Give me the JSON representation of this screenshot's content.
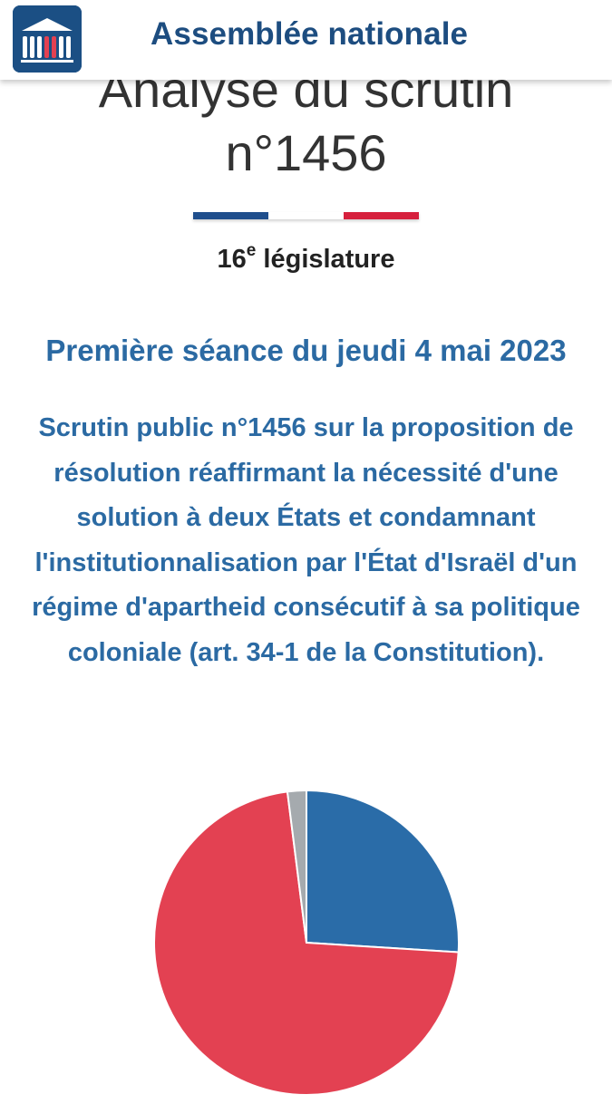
{
  "header": {
    "site_title": "Assemblée nationale"
  },
  "page": {
    "title_line1": "Analyse du scrutin",
    "title_line2": "n°1456",
    "legislature_number": "16",
    "legislature_suffix": "e",
    "legislature_label": " législature",
    "seance": "Première séance du jeudi 4 mai 2023",
    "description": "Scrutin public n°1456 sur la proposition de résolution réaffirmant la nécessité d'une solution à deux États et condamnant l'institutionnalisation par l'État d'Israël d'un régime d'apartheid consécutif à sa politique coloniale (art. 34-1 de la Constitution)."
  },
  "colors": {
    "brand_blue": "#1d4d80",
    "text_blue": "#2b6aa3",
    "flag_blue": "#1f4e8c",
    "flag_red": "#d6203d",
    "pie_for": "#2a6ca8",
    "pie_against": "#e34152",
    "pie_abstention": "#a5aaae"
  },
  "chart_data": {
    "type": "pie",
    "slices": [
      {
        "value": 26,
        "color": "#2a6ca8"
      },
      {
        "value": 72,
        "color": "#e34152"
      },
      {
        "value": 2,
        "color": "#a5aaae"
      }
    ]
  }
}
